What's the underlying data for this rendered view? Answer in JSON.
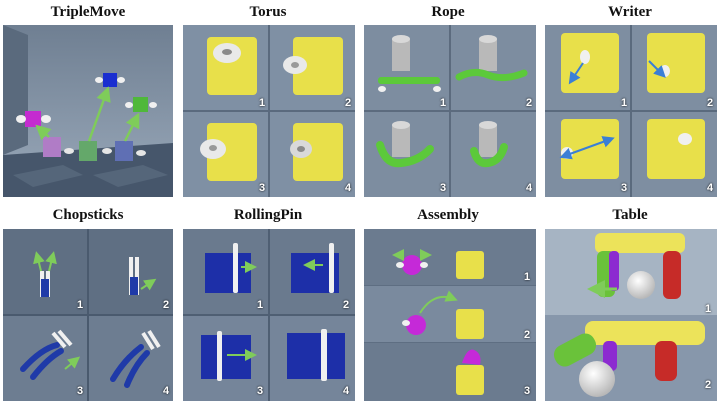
{
  "tasks": [
    {
      "title": "TripleMove"
    },
    {
      "title": "Torus"
    },
    {
      "title": "Rope"
    },
    {
      "title": "Writer"
    },
    {
      "title": "Chopsticks"
    },
    {
      "title": "RollingPin"
    },
    {
      "title": "Assembly"
    },
    {
      "title": "Table"
    }
  ],
  "step_labels": [
    "1",
    "2",
    "3",
    "4"
  ],
  "colors": {
    "floor_dark": "#3f4f63",
    "floor_light": "#8ea0b4",
    "dough_yellow": "#e8e04a",
    "rope_green": "#5cc93a",
    "pin_blue": "#1d2fa8",
    "chop_blue": "#1f3aa8",
    "ball_magenta": "#c529d8",
    "arrow_green": "#7fcc5a",
    "arrow_blue": "#3a7fd6",
    "table_green": "#6ac23a",
    "table_purple": "#8c2bd0",
    "table_red": "#c62b28"
  }
}
